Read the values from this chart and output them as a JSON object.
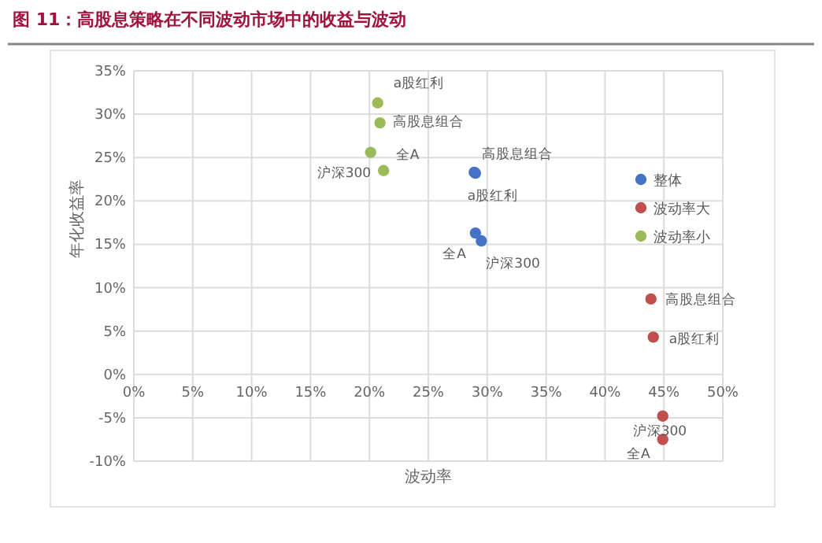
{
  "chart_data": {
    "type": "scatter",
    "title": "图 11：高股息策略在不同波动市场中的收益与波动",
    "xlabel": "波动率",
    "ylabel": "年化收益率",
    "xlim": [
      0,
      50
    ],
    "ylim": [
      -10,
      35
    ],
    "xticks": [
      {
        "value": 0,
        "label": "0%"
      },
      {
        "value": 5,
        "label": "5%"
      },
      {
        "value": 10,
        "label": "10%"
      },
      {
        "value": 15,
        "label": "15%"
      },
      {
        "value": 20,
        "label": "20%"
      },
      {
        "value": 25,
        "label": "25%"
      },
      {
        "value": 30,
        "label": "30%"
      },
      {
        "value": 35,
        "label": "35%"
      },
      {
        "value": 40,
        "label": "40%"
      },
      {
        "value": 45,
        "label": "45%"
      },
      {
        "value": 50,
        "label": "50%"
      }
    ],
    "yticks": [
      {
        "value": -10,
        "label": "-10%"
      },
      {
        "value": -5,
        "label": "-5%"
      },
      {
        "value": 0,
        "label": "0%"
      },
      {
        "value": 5,
        "label": "5%"
      },
      {
        "value": 10,
        "label": "10%"
      },
      {
        "value": 15,
        "label": "15%"
      },
      {
        "value": 20,
        "label": "20%"
      },
      {
        "value": 25,
        "label": "25%"
      },
      {
        "value": 30,
        "label": "30%"
      },
      {
        "value": 35,
        "label": "35%"
      }
    ],
    "grid": true,
    "legend": "top right",
    "marker": "circle",
    "series": [
      {
        "name": "整体",
        "color": "#4472c4",
        "x": [
          28.9,
          29.0,
          29.0,
          29.5
        ],
        "values": [
          23.3,
          23.2,
          16.3,
          15.4
        ]
      },
      {
        "name": "波动率大",
        "color": "#c0504d",
        "x": [
          43.9,
          44.1,
          44.9,
          44.9
        ],
        "values": [
          8.7,
          4.3,
          -4.8,
          -7.5
        ]
      },
      {
        "name": "波动率小",
        "color": "#9bbb59",
        "x": [
          20.7,
          20.9,
          20.1,
          21.2
        ],
        "values": [
          31.3,
          29.0,
          25.6,
          23.5
        ]
      }
    ],
    "annotations": [
      {
        "text": "a股红利",
        "x": 20.7,
        "y": 31.3
      },
      {
        "text": "高股息组合",
        "x": 20.9,
        "y": 29.0
      },
      {
        "text": "全A",
        "x": 20.1,
        "y": 25.6
      },
      {
        "text": "沪深300",
        "x": 21.2,
        "y": 23.5
      },
      {
        "text": "高股息组合",
        "x": 28.9,
        "y": 23.3
      },
      {
        "text": "a股红利",
        "x": 29.0,
        "y": 23.2
      },
      {
        "text": "全A",
        "x": 29.0,
        "y": 16.3
      },
      {
        "text": "沪深300",
        "x": 29.5,
        "y": 15.4
      },
      {
        "text": "高股息组合",
        "x": 43.9,
        "y": 8.7
      },
      {
        "text": "a股红利",
        "x": 44.1,
        "y": 4.3
      },
      {
        "text": "沪深300",
        "x": 44.9,
        "y": -4.8
      },
      {
        "text": "全A",
        "x": 44.9,
        "y": -7.5
      }
    ]
  }
}
